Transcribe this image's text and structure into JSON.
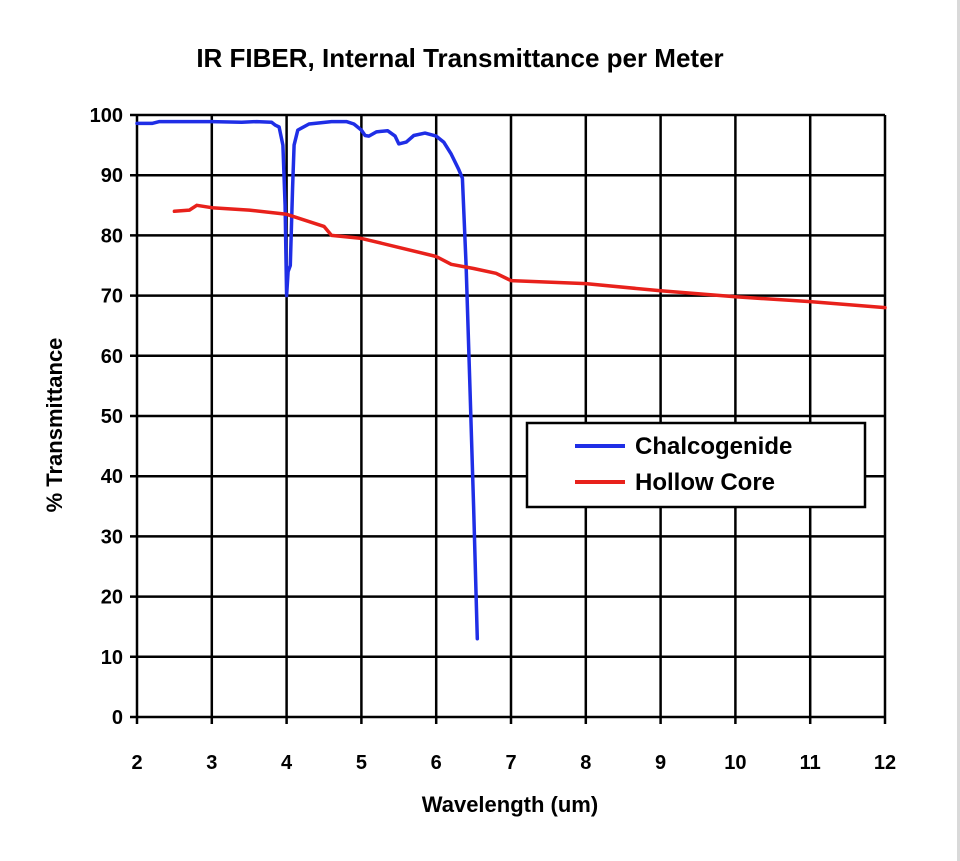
{
  "chart_data": {
    "type": "line",
    "title": "IR FIBER, Internal Transmittance per Meter",
    "xlabel": "Wavelength (um)",
    "ylabel": "% Transmittance",
    "xlim": [
      2,
      12
    ],
    "ylim": [
      0,
      100
    ],
    "xticks": [
      "2",
      "3",
      "4",
      "5",
      "6",
      "7",
      "8",
      "9",
      "10",
      "11",
      "12"
    ],
    "yticks": [
      "0",
      "10",
      "20",
      "30",
      "40",
      "50",
      "60",
      "70",
      "80",
      "90",
      "100"
    ],
    "grid": true,
    "legend_position": "center-right",
    "series": [
      {
        "name": "Chalcogenide",
        "color": "#1f2ee6",
        "points": [
          [
            2.0,
            98.6
          ],
          [
            2.2,
            98.6
          ],
          [
            2.3,
            98.9
          ],
          [
            3.0,
            98.9
          ],
          [
            3.4,
            98.8
          ],
          [
            3.6,
            98.9
          ],
          [
            3.8,
            98.8
          ],
          [
            3.85,
            98.3
          ],
          [
            3.9,
            98.0
          ],
          [
            3.95,
            95.0
          ],
          [
            3.98,
            85.0
          ],
          [
            4.0,
            70.0
          ],
          [
            4.02,
            74.0
          ],
          [
            4.05,
            75.0
          ],
          [
            4.08,
            88.0
          ],
          [
            4.1,
            95.0
          ],
          [
            4.15,
            97.5
          ],
          [
            4.3,
            98.5
          ],
          [
            4.6,
            98.9
          ],
          [
            4.8,
            98.9
          ],
          [
            4.9,
            98.5
          ],
          [
            5.0,
            97.5
          ],
          [
            5.05,
            96.6
          ],
          [
            5.1,
            96.5
          ],
          [
            5.2,
            97.2
          ],
          [
            5.35,
            97.4
          ],
          [
            5.45,
            96.5
          ],
          [
            5.5,
            95.2
          ],
          [
            5.6,
            95.5
          ],
          [
            5.7,
            96.6
          ],
          [
            5.85,
            97.0
          ],
          [
            6.0,
            96.5
          ],
          [
            6.1,
            95.5
          ],
          [
            6.2,
            93.5
          ],
          [
            6.3,
            91.0
          ],
          [
            6.35,
            89.5
          ],
          [
            6.4,
            75.0
          ],
          [
            6.45,
            55.0
          ],
          [
            6.5,
            35.0
          ],
          [
            6.55,
            13.0
          ]
        ]
      },
      {
        "name": "Hollow Core",
        "color": "#e8211b",
        "points": [
          [
            2.5,
            84.0
          ],
          [
            2.7,
            84.2
          ],
          [
            2.8,
            85.0
          ],
          [
            3.0,
            84.6
          ],
          [
            3.5,
            84.2
          ],
          [
            4.0,
            83.5
          ],
          [
            4.5,
            81.5
          ],
          [
            4.6,
            80.0
          ],
          [
            5.0,
            79.5
          ],
          [
            5.5,
            78.0
          ],
          [
            6.0,
            76.5
          ],
          [
            6.2,
            75.2
          ],
          [
            6.5,
            74.5
          ],
          [
            6.8,
            73.7
          ],
          [
            7.0,
            72.5
          ],
          [
            8.0,
            72.0
          ],
          [
            9.0,
            70.8
          ],
          [
            10.0,
            69.8
          ],
          [
            11.0,
            69.0
          ],
          [
            12.0,
            68.0
          ]
        ]
      }
    ]
  }
}
